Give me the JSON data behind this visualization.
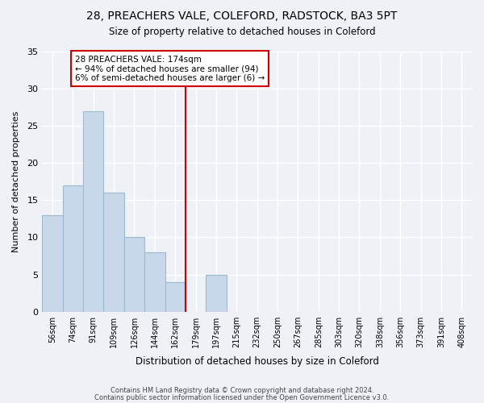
{
  "title": "28, PREACHERS VALE, COLEFORD, RADSTOCK, BA3 5PT",
  "subtitle": "Size of property relative to detached houses in Coleford",
  "xlabel": "Distribution of detached houses by size in Coleford",
  "ylabel": "Number of detached properties",
  "bin_labels": [
    "56sqm",
    "74sqm",
    "91sqm",
    "109sqm",
    "126sqm",
    "144sqm",
    "162sqm",
    "179sqm",
    "197sqm",
    "215sqm",
    "232sqm",
    "250sqm",
    "267sqm",
    "285sqm",
    "303sqm",
    "320sqm",
    "338sqm",
    "356sqm",
    "373sqm",
    "391sqm",
    "408sqm"
  ],
  "bar_values": [
    13,
    17,
    27,
    16,
    10,
    8,
    4,
    0,
    5,
    0,
    0,
    0,
    0,
    0,
    0,
    0,
    0,
    0,
    0,
    0,
    0
  ],
  "bar_color": "#c8d8ea",
  "bar_edge_color": "#9bbad0",
  "vline_color": "#cc0000",
  "annotation_title": "28 PREACHERS VALE: 174sqm",
  "annotation_line1": "← 94% of detached houses are smaller (94)",
  "annotation_line2": "6% of semi-detached houses are larger (6) →",
  "annotation_box_color": "#ffffff",
  "annotation_box_edge": "#cc0000",
  "ylim": [
    0,
    35
  ],
  "yticks": [
    0,
    5,
    10,
    15,
    20,
    25,
    30,
    35
  ],
  "footer1": "Contains HM Land Registry data © Crown copyright and database right 2024.",
  "footer2": "Contains public sector information licensed under the Open Government Licence v3.0.",
  "bg_color": "#eef2f7"
}
